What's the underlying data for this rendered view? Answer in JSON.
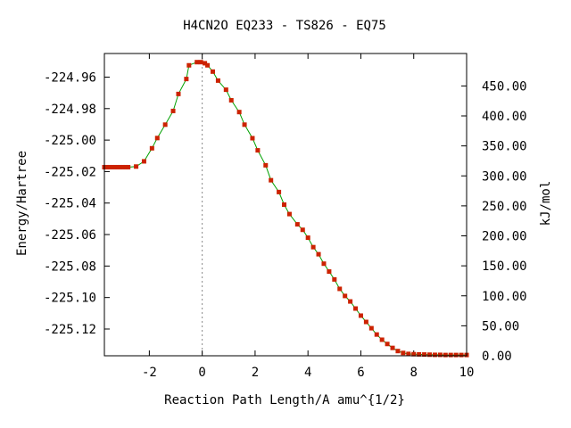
{
  "chart_data": {
    "type": "line",
    "title": "H4CN2O   EQ233 - TS826 - EQ75",
    "xlabel": "Reaction Path Length/A amu^{1/2}",
    "ylabel": "Energy/Hartree",
    "y2label": "kJ/mol",
    "xlim": [
      -3.7,
      10
    ],
    "ylim": [
      -225.137,
      -224.945
    ],
    "y2lim": [
      0.0,
      504.1
    ],
    "x_ticks": [
      -2,
      0,
      2,
      4,
      6,
      8,
      10
    ],
    "x_tick_labels": [
      "-2",
      "0",
      "2",
      "4",
      "6",
      "8",
      "10"
    ],
    "y_ticks": [
      -224.96,
      -224.98,
      -225.0,
      -225.02,
      -225.04,
      -225.06,
      -225.08,
      -225.1,
      -225.12
    ],
    "y_tick_labels": [
      "-224.96",
      "-224.98",
      "-225.00",
      "-225.02",
      "-225.04",
      "-225.06",
      "-225.08",
      "-225.10",
      "-225.12"
    ],
    "y2_ticks": [
      450,
      400,
      350,
      300,
      250,
      200,
      150,
      100,
      50,
      0
    ],
    "y2_tick_labels": [
      "450.00",
      "400.00",
      "350.00",
      "300.00",
      "250.00",
      "200.00",
      "150.00",
      "100.00",
      "50.00",
      "0.00"
    ],
    "transition_state_x": 0,
    "line_color": "#00a000",
    "marker_color": "#cc2200",
    "series": [
      {
        "x": [
          -3.7,
          -3.6,
          -3.5,
          -3.4,
          -3.3,
          -3.2,
          -3.1,
          -3.0,
          -2.9,
          -2.8,
          -2.5,
          -2.2,
          -1.9,
          -1.7,
          -1.4,
          -1.1,
          -0.9,
          -0.6,
          -0.5,
          -0.2,
          -0.05,
          0.1,
          0.2,
          0.4,
          0.6,
          0.9,
          1.1,
          1.4,
          1.6,
          1.9,
          2.1,
          2.4,
          2.6,
          2.9,
          3.1,
          3.3,
          3.6,
          3.8,
          4.0,
          4.2,
          4.4,
          4.6,
          4.8,
          5.0,
          5.2,
          5.4,
          5.6,
          5.8,
          6.0,
          6.2,
          6.4,
          6.6,
          6.8,
          7.0,
          7.2,
          7.4,
          7.6,
          7.8,
          8.0,
          8.2,
          8.4,
          8.6,
          8.8,
          9.0,
          9.2,
          9.4,
          9.6,
          9.8,
          10.0
        ],
        "y": [
          -225.0172,
          -225.0172,
          -225.0172,
          -225.0172,
          -225.0172,
          -225.0172,
          -225.0172,
          -225.0172,
          -225.0172,
          -225.0172,
          -225.0168,
          -225.0135,
          -225.0052,
          -224.9987,
          -224.9902,
          -224.9815,
          -224.9707,
          -224.9612,
          -224.9525,
          -224.9505,
          -224.9505,
          -224.9512,
          -224.9525,
          -224.9565,
          -224.9622,
          -224.968,
          -224.9747,
          -224.9822,
          -224.9902,
          -224.9988,
          -225.0065,
          -225.016,
          -225.0255,
          -225.033,
          -225.041,
          -225.047,
          -225.0535,
          -225.057,
          -225.062,
          -225.068,
          -225.0725,
          -225.0785,
          -225.0835,
          -225.0885,
          -225.0945,
          -225.099,
          -225.1025,
          -225.107,
          -225.1115,
          -225.1155,
          -225.1195,
          -225.1235,
          -225.1268,
          -225.1295,
          -225.132,
          -225.134,
          -225.1352,
          -225.1358,
          -225.136,
          -225.1361,
          -225.1362,
          -225.1363,
          -225.1364,
          -225.1364,
          -225.1365,
          -225.1365,
          -225.1365,
          -225.1365,
          -225.1365
        ]
      }
    ]
  }
}
